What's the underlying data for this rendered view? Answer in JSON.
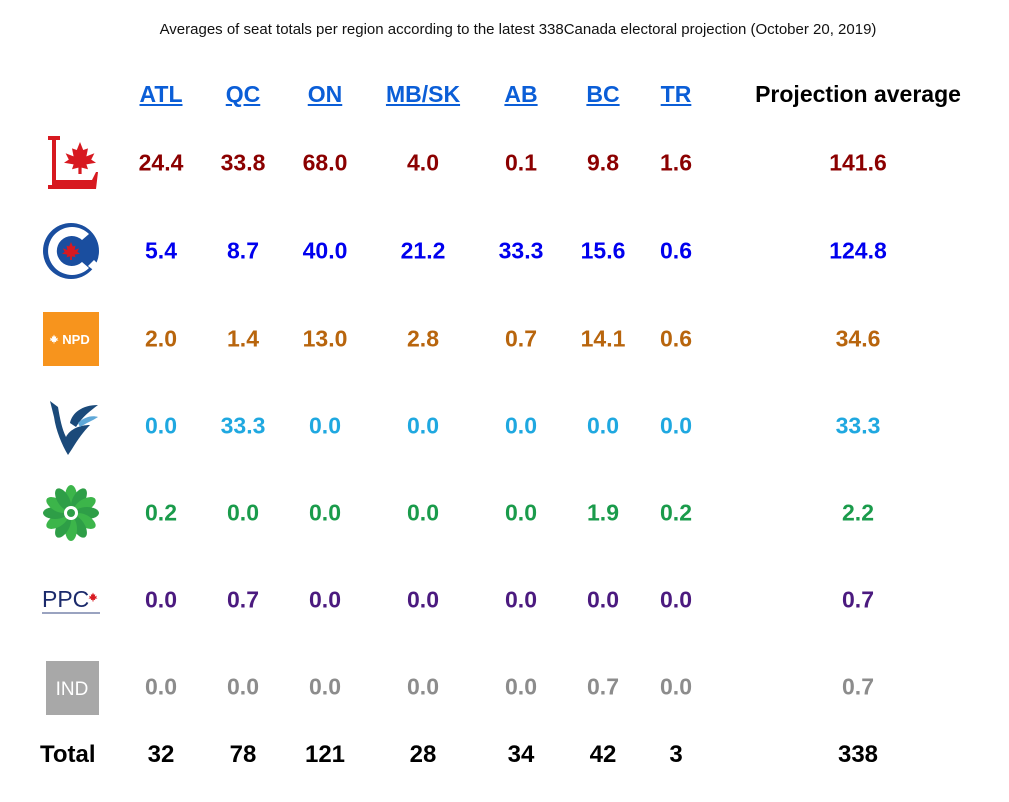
{
  "title": "Averages of seat totals per region according to the latest 338Canada electoral projection (October 20, 2019)",
  "chart_data": {
    "type": "table",
    "columns": [
      "ATL",
      "QC",
      "ON",
      "MB/SK",
      "AB",
      "BC",
      "TR",
      "Projection average"
    ],
    "rows": [
      {
        "logo": "liberal-logo",
        "color": "#8b0000",
        "values": [
          "24.4",
          "33.8",
          "68.0",
          "4.0",
          "0.1",
          "9.8",
          "1.6",
          "141.6"
        ]
      },
      {
        "logo": "conservative-logo",
        "color": "#0000ee",
        "values": [
          "5.4",
          "8.7",
          "40.0",
          "21.2",
          "33.3",
          "15.6",
          "0.6",
          "124.8"
        ]
      },
      {
        "logo": "ndp-logo",
        "logo_text": "NPD",
        "color": "#b8650d",
        "values": [
          "2.0",
          "1.4",
          "13.0",
          "2.8",
          "0.7",
          "14.1",
          "0.6",
          "34.6"
        ]
      },
      {
        "logo": "bloc-logo",
        "color": "#1fa8e0",
        "values": [
          "0.0",
          "33.3",
          "0.0",
          "0.0",
          "0.0",
          "0.0",
          "0.0",
          "33.3"
        ]
      },
      {
        "logo": "green-logo",
        "color": "#1a9b4b",
        "values": [
          "0.2",
          "0.0",
          "0.0",
          "0.0",
          "0.0",
          "1.9",
          "0.2",
          "2.2"
        ]
      },
      {
        "logo": "ppc-logo",
        "logo_text": "PPC",
        "color": "#4b1a7f",
        "values": [
          "0.0",
          "0.7",
          "0.0",
          "0.0",
          "0.0",
          "0.0",
          "0.0",
          "0.7"
        ]
      },
      {
        "logo": "ind-logo",
        "logo_text": "IND",
        "color": "#8c8c8c",
        "values": [
          "0.0",
          "0.0",
          "0.0",
          "0.0",
          "0.0",
          "0.7",
          "0.0",
          "0.7"
        ]
      }
    ],
    "total_label": "Total",
    "totals": [
      "32",
      "78",
      "121",
      "28",
      "34",
      "42",
      "3",
      "338"
    ]
  }
}
